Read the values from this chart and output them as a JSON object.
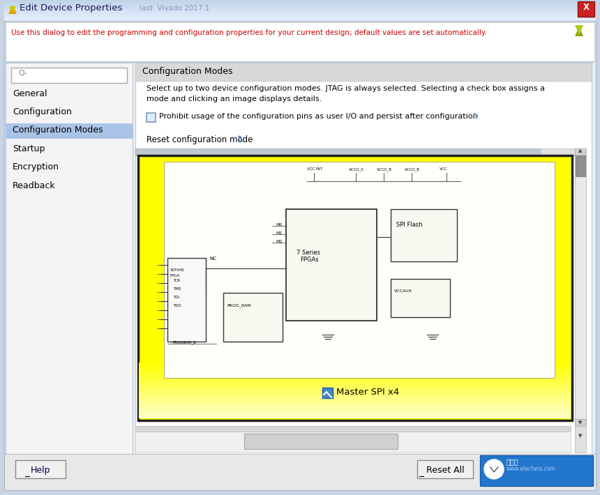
{
  "title_bar_text": "Edit Device Properties",
  "title_bar_subtitle": "last  Vivado 2017.1",
  "window_bg": "#dce6f0",
  "close_btn_color": "#cc2222",
  "info_text": "Use this dialog to edit the programming and configuration properties for your current design; default values are set automatically.",
  "info_text_color": "#cc0000",
  "nav_items": [
    "General",
    "Configuration",
    "Configuration Modes",
    "Startup",
    "Encryption",
    "Readback"
  ],
  "selected_nav": "Configuration Modes",
  "selected_nav_bg": "#aac4e8",
  "selected_nav_fg": "#000000",
  "right_panel_header": "Configuration Modes",
  "right_desc_line1": "Select up to two device configuration modes. JTAG is always selected. Selecting a check box assigns a",
  "right_desc_line2": "mode and clicking an image displays details.",
  "checkbox_text": "Prohibit usage of the configuration pins as user I/O and persist after configuration",
  "reset_text": "Reset configuration mode",
  "diagram_label": "Master SPI x4",
  "help_btn": "Help",
  "reset_all_btn": "Reset All",
  "search_placeholder": "Q-",
  "title_icon_color1": "#e8a000",
  "title_icon_color2": "#c8c800",
  "xilinx_icon_color1": "#88aa00",
  "xilinx_icon_color2": "#aacc22",
  "diagram_yellow": "#ffff00",
  "diagram_border": "#222222",
  "watermark_bg": "#2277cc",
  "scroll_color": "#c8c8c8",
  "scroll_thumb": "#909090",
  "btn_bg": "#f0f0f0",
  "btn_border": "#888888",
  "panel_bg": "#f4f4f4",
  "right_bg": "#ffffff",
  "header_bg": "#d8d8d8",
  "bottom_bar_bg": "#e8e8e8",
  "info_bar_bg": "#ffffff",
  "left_border_bg": "#c8d4e4"
}
